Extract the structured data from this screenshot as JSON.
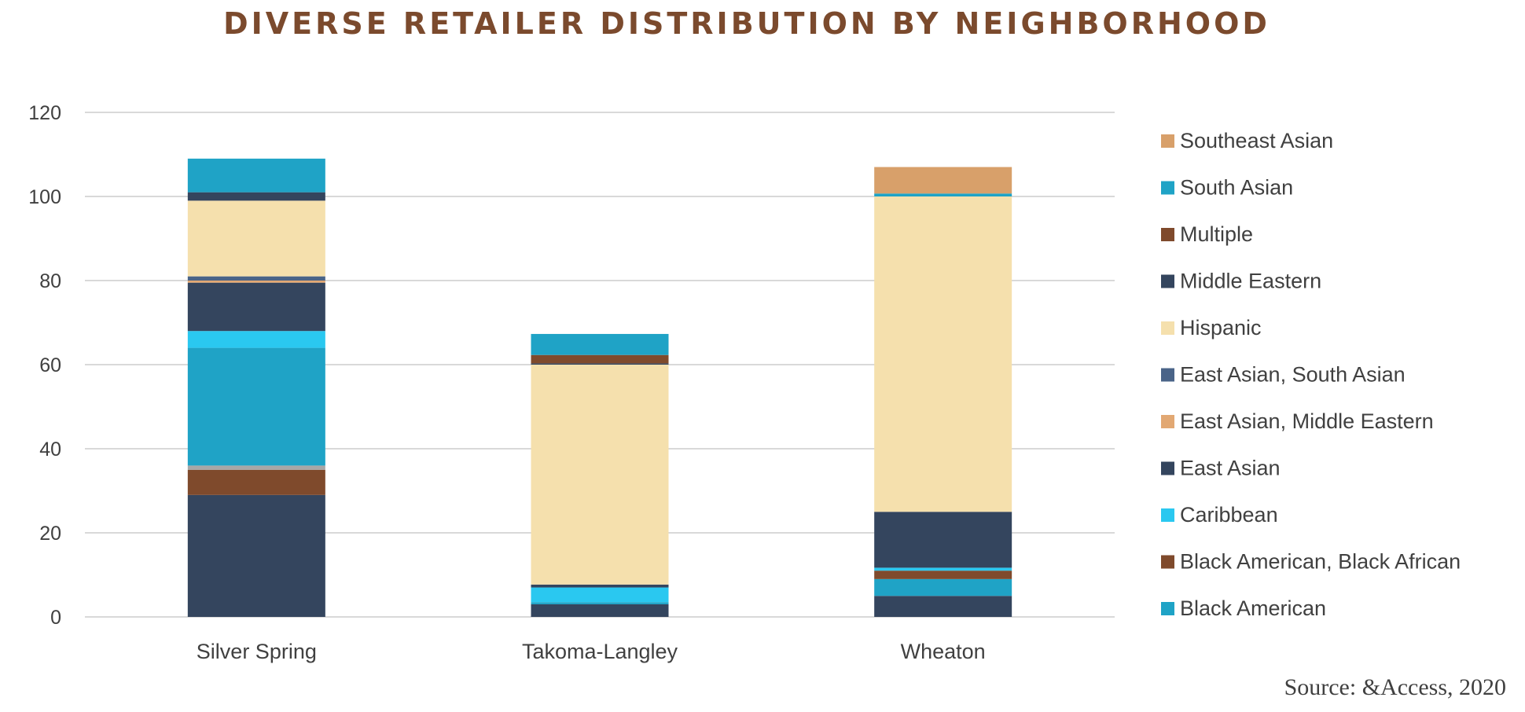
{
  "chart_data": {
    "type": "bar",
    "stacked": true,
    "title": "DIVERSE RETAILER DISTRIBUTION BY NEIGHBORHOOD",
    "xlabel": "",
    "ylabel": "",
    "ylim": [
      0,
      120
    ],
    "yticks": [
      "0",
      "20",
      "40",
      "60",
      "80",
      "100",
      "120"
    ],
    "grid": true,
    "legend_position": "right",
    "categories": [
      "Silver Spring",
      "Takoma-Langley",
      "Wheaton"
    ],
    "series": [
      {
        "name": "Black American",
        "color": "#1fa3c6",
        "values": [
          0,
          0,
          0
        ]
      },
      {
        "name": "Black American, Black African",
        "color": "#7f4a2c",
        "values": [
          0,
          0,
          0
        ]
      },
      {
        "name": "Caribbean",
        "color": "#2ac8f0",
        "values": [
          0,
          0,
          0
        ]
      },
      {
        "name": "East Asian",
        "color": "#34455e",
        "values": [
          29,
          3,
          5
        ]
      },
      {
        "name": "Black American",
        "color": "#1fa3c6",
        "values": [
          0,
          0,
          4
        ]
      },
      {
        "name": "Black American, Black African",
        "color": "#7f4a2c",
        "values": [
          6,
          0,
          2
        ]
      },
      {
        "name": "",
        "color": "#a7a7a7",
        "values": [
          1,
          0,
          0
        ]
      },
      {
        "name": "Black American",
        "color": "#1fa3c6",
        "values": [
          28,
          0.5,
          0
        ]
      },
      {
        "name": "Caribbean",
        "color": "#2ac8f0",
        "values": [
          4,
          3.5,
          0.7
        ]
      },
      {
        "name": "East Asian",
        "color": "#34455e",
        "values": [
          11.5,
          0.7,
          13.3
        ]
      },
      {
        "name": "East Asian, Middle Eastern",
        "color": "#e2a873",
        "values": [
          0.5,
          0,
          0
        ]
      },
      {
        "name": "East Asian, South Asian",
        "color": "#4a6488",
        "values": [
          1,
          0,
          0
        ]
      },
      {
        "name": "Hispanic",
        "color": "#f5e0ad",
        "values": [
          18,
          52.3,
          75
        ]
      },
      {
        "name": "Middle Eastern",
        "color": "#34455e",
        "values": [
          2,
          0.3,
          0
        ]
      },
      {
        "name": "Multiple",
        "color": "#7f4a2c",
        "values": [
          0,
          2,
          0
        ]
      },
      {
        "name": "South Asian",
        "color": "#1fa3c6",
        "values": [
          8,
          5,
          0.7
        ]
      },
      {
        "name": "Southeast Asian",
        "color": "#d8a06a",
        "values": [
          0,
          0,
          6.3
        ]
      }
    ],
    "legend": [
      {
        "label": "Southeast Asian",
        "color": "#d8a06a"
      },
      {
        "label": "South Asian",
        "color": "#1fa3c6"
      },
      {
        "label": "Multiple",
        "color": "#7f4a2c"
      },
      {
        "label": "Middle Eastern",
        "color": "#34455e"
      },
      {
        "label": "Hispanic",
        "color": "#f5e0ad"
      },
      {
        "label": "East Asian, South Asian",
        "color": "#4a6488"
      },
      {
        "label": "East Asian, Middle Eastern",
        "color": "#e2a873"
      },
      {
        "label": "East Asian",
        "color": "#34455e"
      },
      {
        "label": "Caribbean",
        "color": "#2ac8f0"
      },
      {
        "label": "Black American, Black African",
        "color": "#7f4a2c"
      },
      {
        "label": "Black American",
        "color": "#1fa3c6"
      }
    ]
  },
  "source": "Source: &Access, 2020",
  "colors": {
    "title": "#7b4a2d",
    "gridline": "#d9d9d9",
    "text": "#404040"
  }
}
